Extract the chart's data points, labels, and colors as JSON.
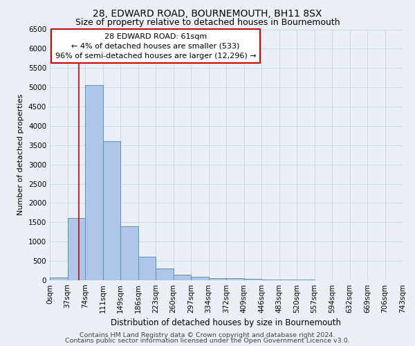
{
  "title": "28, EDWARD ROAD, BOURNEMOUTH, BH11 8SX",
  "subtitle": "Size of property relative to detached houses in Bournemouth",
  "xlabel": "Distribution of detached houses by size in Bournemouth",
  "ylabel": "Number of detached properties",
  "footer_line1": "Contains HM Land Registry data © Crown copyright and database right 2024.",
  "footer_line2": "Contains public sector information licensed under the Open Government Licence v3.0.",
  "annotation_title": "28 EDWARD ROAD: 61sqm",
  "annotation_line2": "← 4% of detached houses are smaller (533)",
  "annotation_line3": "96% of semi-detached houses are larger (12,296) →",
  "bar_values": [
    75,
    1620,
    5060,
    3600,
    1400,
    610,
    300,
    140,
    85,
    55,
    50,
    30,
    20,
    15,
    10,
    8,
    6,
    5,
    5,
    4
  ],
  "bin_labels": [
    "0sqm",
    "37sqm",
    "74sqm",
    "111sqm",
    "149sqm",
    "186sqm",
    "223sqm",
    "260sqm",
    "297sqm",
    "334sqm",
    "372sqm",
    "409sqm",
    "446sqm",
    "483sqm",
    "520sqm",
    "557sqm",
    "594sqm",
    "632sqm",
    "669sqm",
    "706sqm",
    "743sqm"
  ],
  "bar_color": "#aec6e8",
  "bar_edge_color": "#5b8fc3",
  "property_line_x": 1.65,
  "property_line_color": "#cc0000",
  "ylim": [
    0,
    6500
  ],
  "yticks": [
    0,
    500,
    1000,
    1500,
    2000,
    2500,
    3000,
    3500,
    4000,
    4500,
    5000,
    5500,
    6000,
    6500
  ],
  "grid_color": "#c8d8e8",
  "background_color": "#eaf0f6",
  "annotation_box_color": "#ffffff",
  "annotation_box_edge": "#cc0000",
  "title_fontsize": 10,
  "subtitle_fontsize": 9,
  "xlabel_fontsize": 8.5,
  "ylabel_fontsize": 8,
  "tick_fontsize": 7.5,
  "annotation_fontsize": 8,
  "footer_fontsize": 6.8
}
